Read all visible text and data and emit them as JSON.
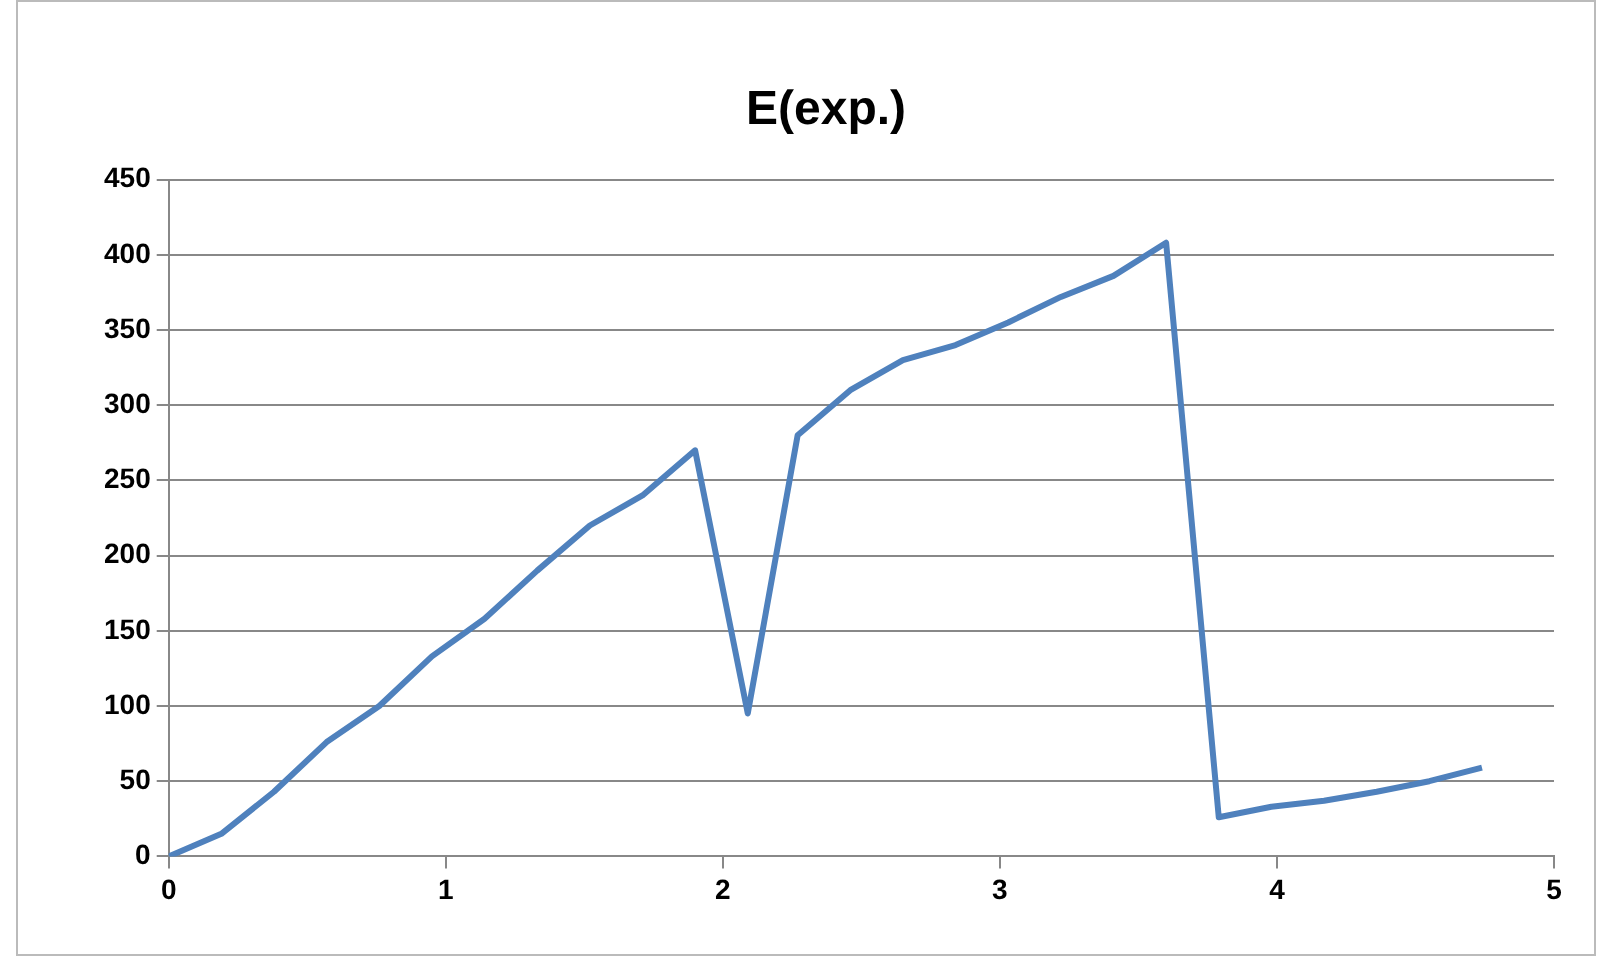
{
  "chart_data": {
    "type": "line",
    "title": "E(exp.)",
    "x": [
      0,
      0.19,
      0.38,
      0.57,
      0.76,
      0.95,
      1.14,
      1.33,
      1.52,
      1.71,
      1.9,
      2.09,
      2.27,
      2.46,
      2.65,
      2.84,
      3.03,
      3.22,
      3.41,
      3.6,
      3.79,
      3.98,
      4.17,
      4.36,
      4.55,
      4.74
    ],
    "series": [
      {
        "color": "#4f81bd",
        "values": [
          0,
          15,
          43,
          76,
          100,
          133,
          158,
          190,
          220,
          240,
          270,
          95,
          280,
          310,
          330,
          340,
          355,
          372,
          386,
          408,
          26,
          33,
          37,
          43,
          50,
          59
        ]
      }
    ],
    "xlim": [
      0,
      5
    ],
    "xticks": [
      0,
      1,
      2,
      3,
      4,
      5
    ],
    "ylim": [
      0,
      450
    ],
    "yticks": [
      0,
      50,
      100,
      150,
      200,
      250,
      300,
      350,
      400,
      450
    ],
    "grid": "y",
    "legend": false,
    "marker": "none",
    "line_style": "solid"
  }
}
